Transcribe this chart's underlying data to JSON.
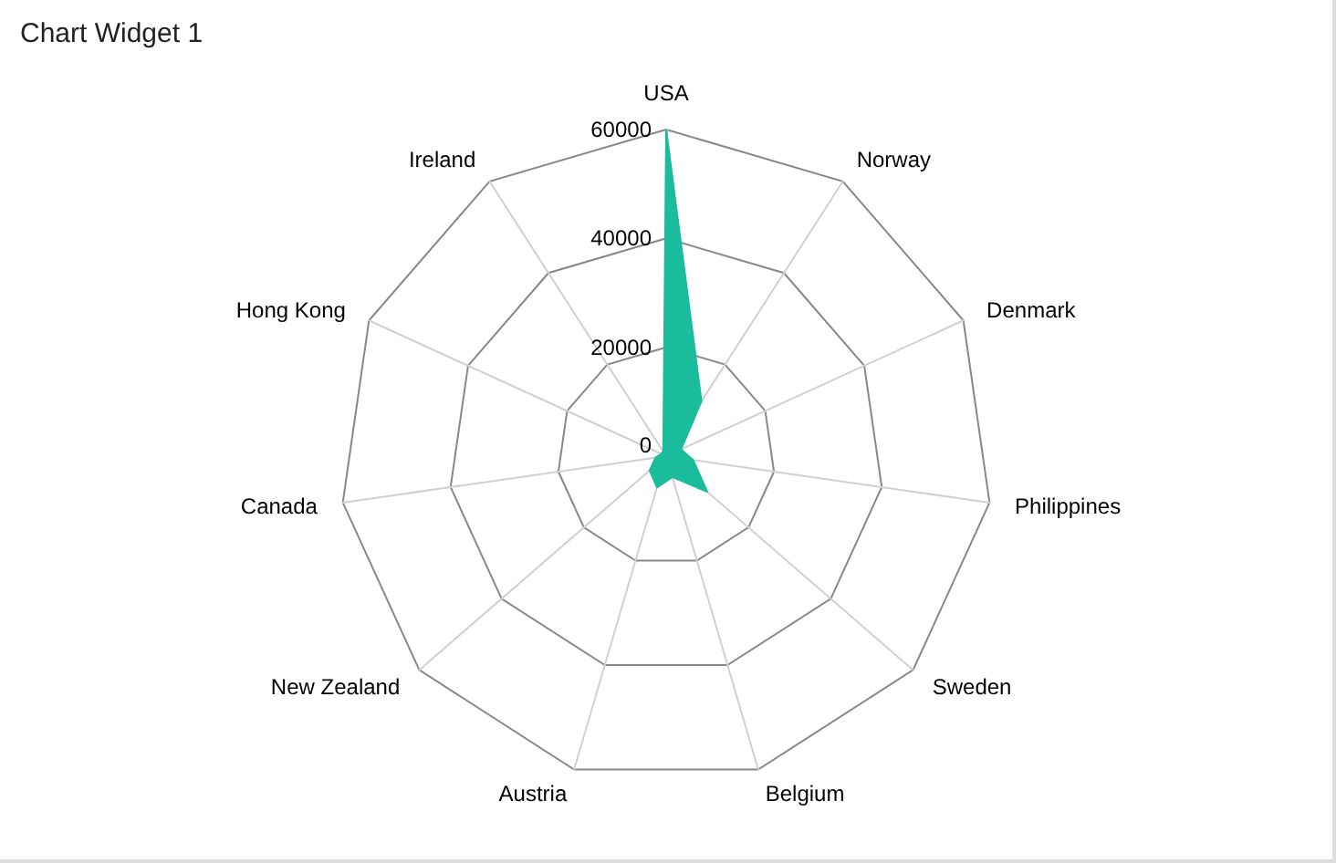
{
  "chart_data": {
    "type": "radar",
    "title": "Chart Widget 1",
    "categories": [
      "USA",
      "Norway",
      "Denmark",
      "Philippines",
      "Sweden",
      "Belgium",
      "Austria",
      "New Zealand",
      "Canada",
      "Hong Kong",
      "Ireland"
    ],
    "series": [
      {
        "color": "#1abc9c",
        "values": [
          60000,
          12000,
          3000,
          5000,
          10000,
          4000,
          6000,
          4000,
          2000,
          1000,
          1000
        ]
      }
    ],
    "ylim": [
      0,
      60000
    ],
    "yticks": [
      0,
      20000,
      40000,
      60000
    ]
  }
}
